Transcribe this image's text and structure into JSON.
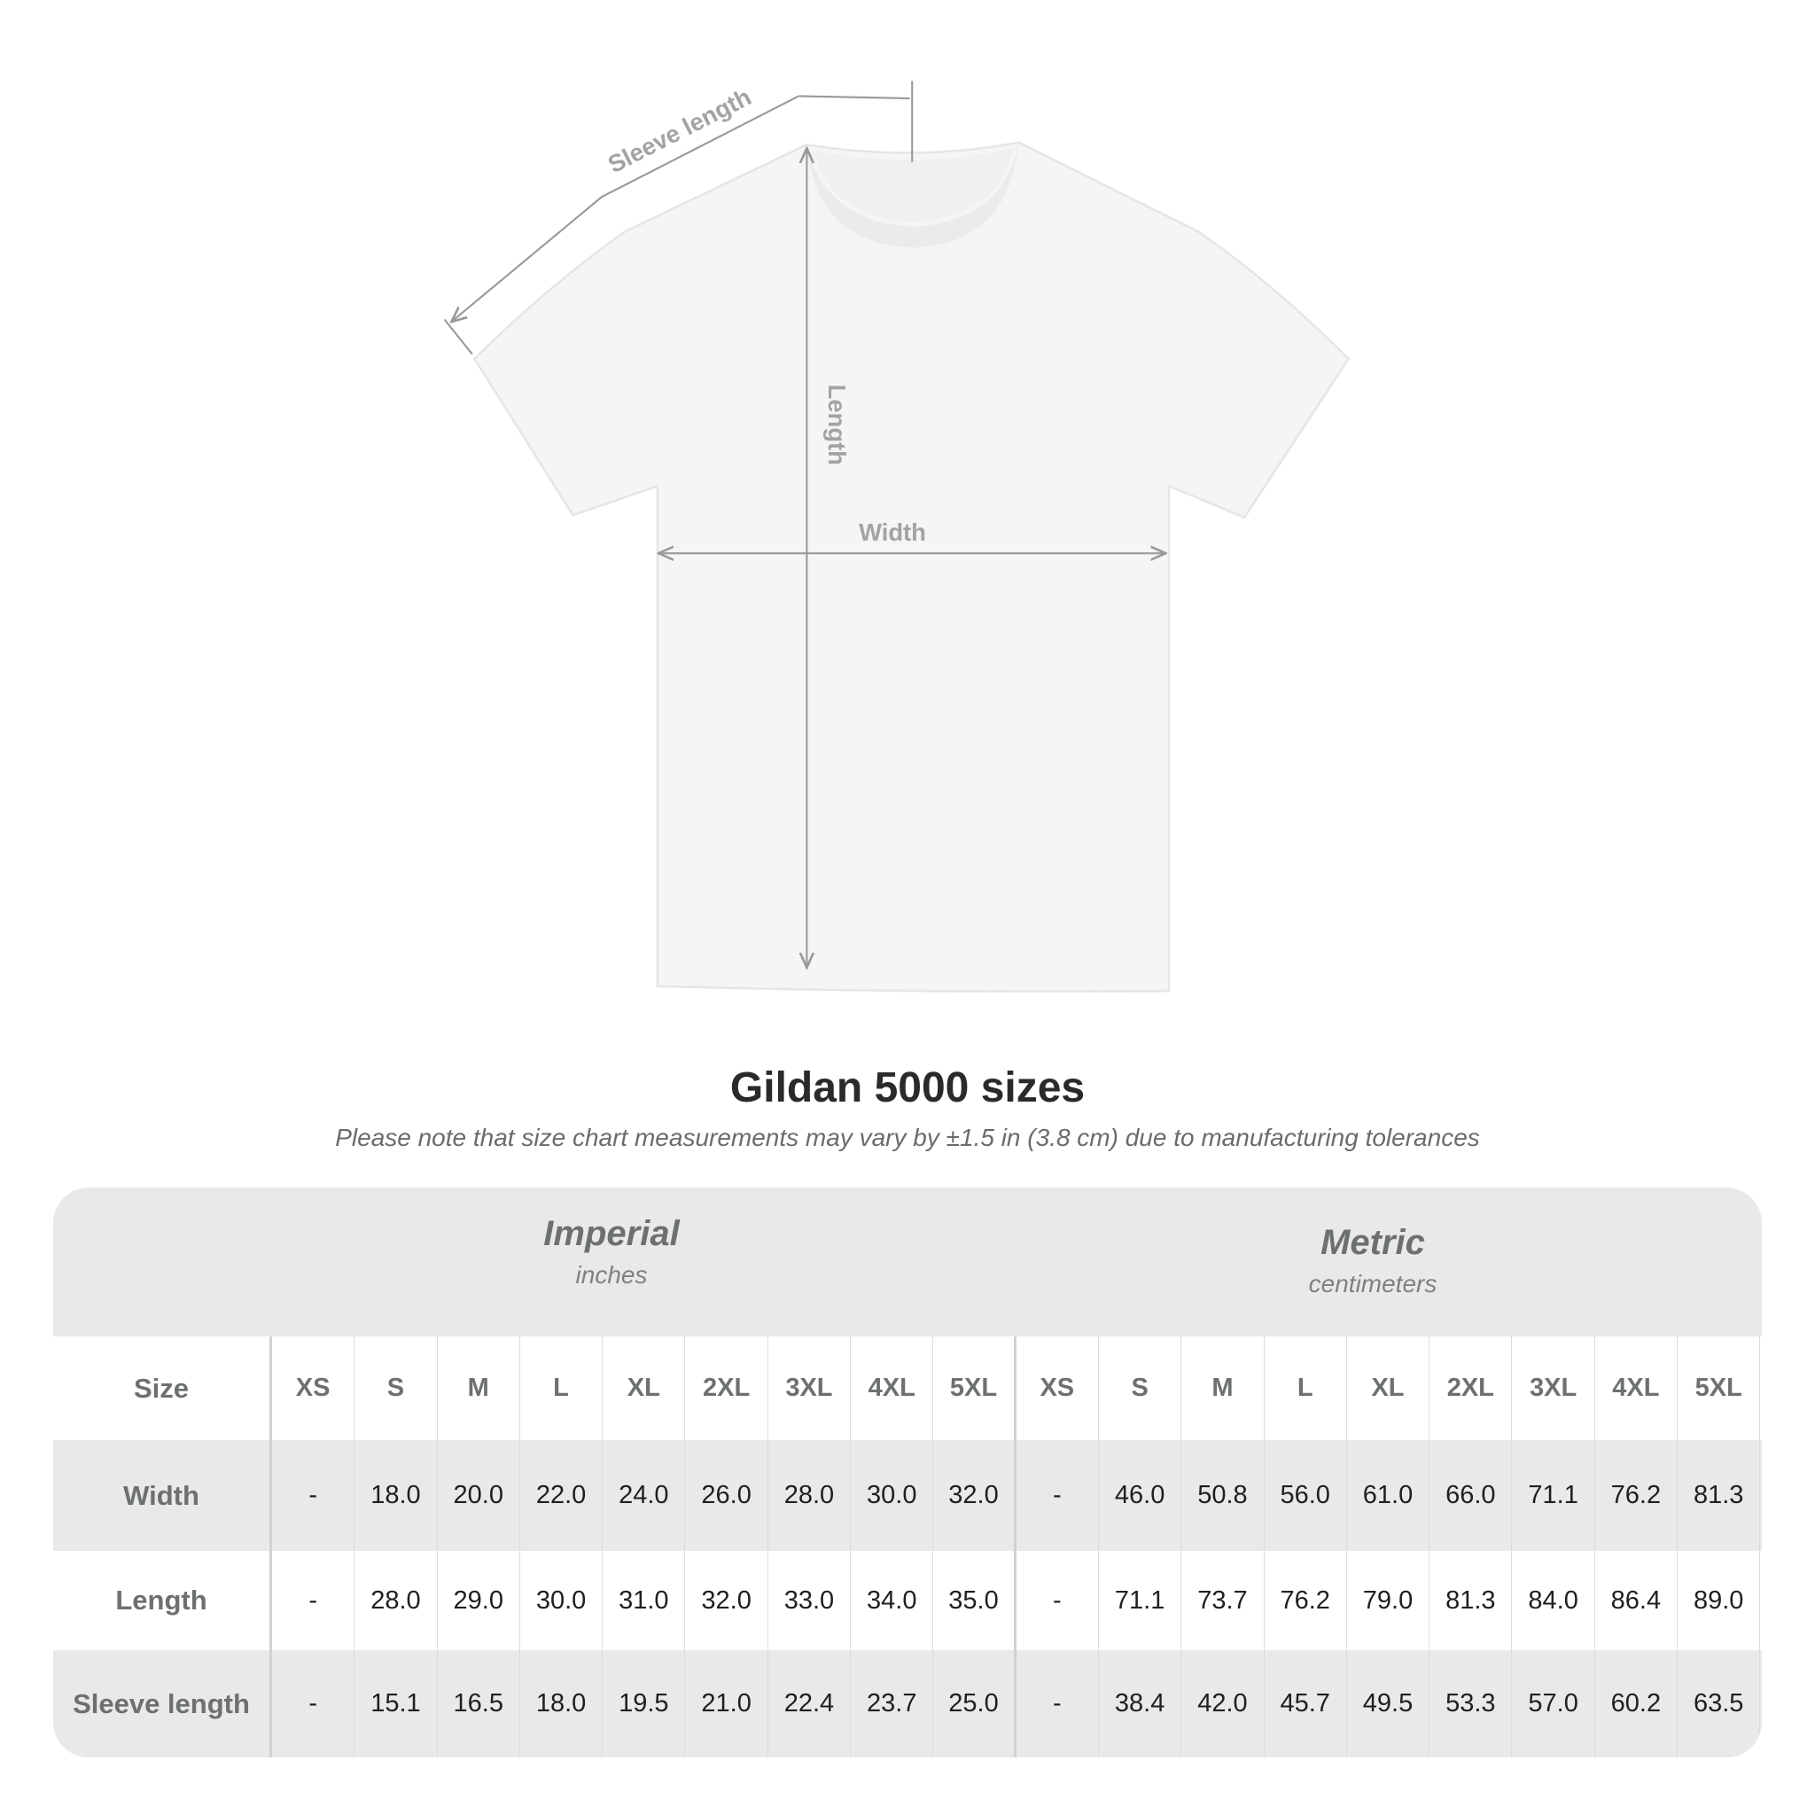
{
  "diagram": {
    "sleeve_label": "Sleeve length",
    "length_label": "Length",
    "width_label": "Width",
    "shirt_color": "#f5f5f5",
    "line_color": "#999999"
  },
  "title": "Gildan 5000 sizes",
  "note": "Please note that size chart measurements may vary by ±1.5 in (3.8 cm) due to manufacturing tolerances",
  "table": {
    "imperial": {
      "title": "Imperial",
      "unit": "inches"
    },
    "metric": {
      "title": "Metric",
      "unit": "centimeters"
    },
    "size_label": "Size",
    "sizes": [
      "XS",
      "S",
      "M",
      "L",
      "XL",
      "2XL",
      "3XL",
      "4XL",
      "5XL"
    ],
    "rows": [
      {
        "label": "Width",
        "imperial": [
          "-",
          "18.0",
          "20.0",
          "22.0",
          "24.0",
          "26.0",
          "28.0",
          "30.0",
          "32.0"
        ],
        "metric": [
          "-",
          "46.0",
          "50.8",
          "56.0",
          "61.0",
          "66.0",
          "71.1",
          "76.2",
          "81.3"
        ]
      },
      {
        "label": "Length",
        "imperial": [
          "-",
          "28.0",
          "29.0",
          "30.0",
          "31.0",
          "32.0",
          "33.0",
          "34.0",
          "35.0"
        ],
        "metric": [
          "-",
          "71.1",
          "73.7",
          "76.2",
          "79.0",
          "81.3",
          "84.0",
          "86.4",
          "89.0"
        ]
      },
      {
        "label": "Sleeve length",
        "imperial": [
          "-",
          "15.1",
          "16.5",
          "18.0",
          "19.5",
          "21.0",
          "22.4",
          "23.7",
          "25.0"
        ],
        "metric": [
          "-",
          "38.4",
          "42.0",
          "45.7",
          "49.5",
          "53.3",
          "57.0",
          "60.2",
          "63.5"
        ]
      }
    ]
  }
}
